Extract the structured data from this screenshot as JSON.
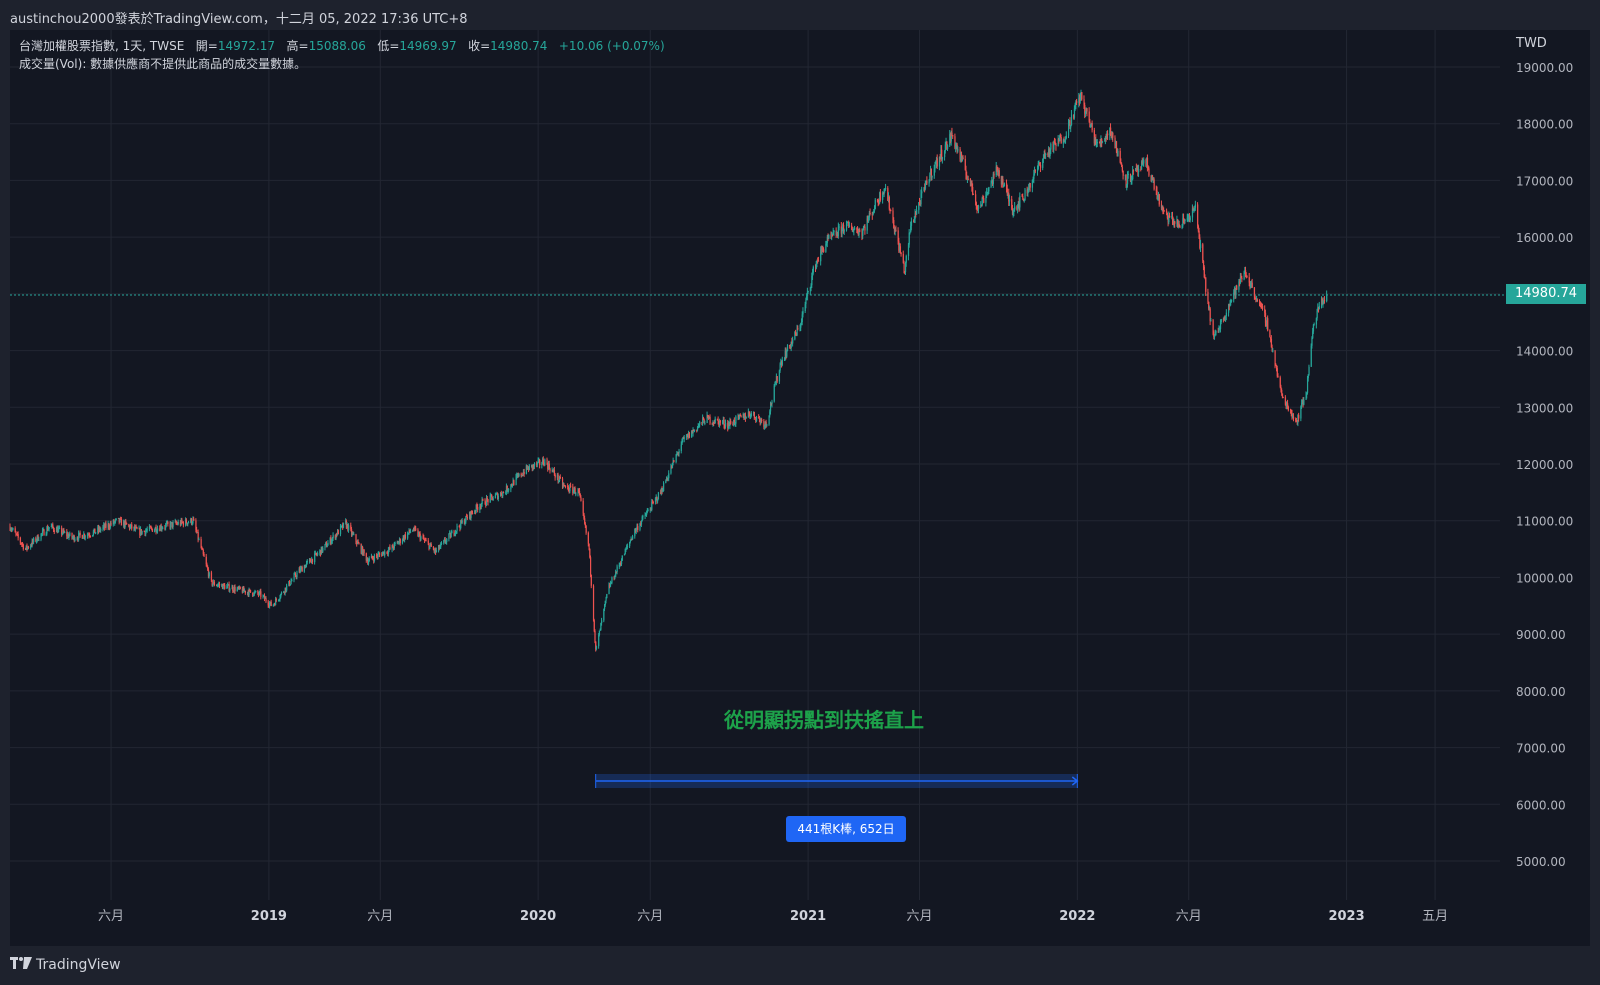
{
  "header": {
    "title": "austinchou2000發表於TradingView.com，十二月 05, 2022 17:36 UTC+8"
  },
  "legend": {
    "symbol": "台灣加權股票指數, 1天, TWSE",
    "open_label": "開=",
    "open": "14972.17",
    "high_label": "高=",
    "high": "15088.06",
    "low_label": "低=",
    "low": "14969.97",
    "close_label": "收=",
    "close": "14980.74",
    "change": "+10.06 (+0.07%)",
    "volume_note": "成交量(Vol): 數據供應商不提供此商品的成交量數據。"
  },
  "price_scale": {
    "currency": "TWD",
    "current_price": "14980.74"
  },
  "annotation": {
    "text": "從明顯拐點到扶搖直上",
    "range_badge": "441根K棒, 652日"
  },
  "branding": {
    "logo_text": "TradingView"
  },
  "colors": {
    "up": "#26a69a",
    "down": "#ef5350",
    "background": "#131722",
    "annotation_text": "#1da24a",
    "range_badge": "#1f66f5"
  },
  "chart_data": {
    "type": "candlestick",
    "title": "台灣加權股票指數, 1天, TWSE",
    "ylabel": "TWD",
    "ylim": [
      4000,
      19800
    ],
    "xlim": [
      "2018-01-15",
      "2023-07-28"
    ],
    "grid": true,
    "y_ticks": [
      "19000.00",
      "18000.00",
      "17000.00",
      "16000.00",
      "15000.00",
      "14000.00",
      "13000.00",
      "12000.00",
      "11000.00",
      "10000.00",
      "9000.00",
      "8000.00",
      "7000.00",
      "6000.00",
      "5000.00"
    ],
    "x_ticks": [
      {
        "date": "2018-06-01",
        "label": "六月"
      },
      {
        "date": "2019-01-01",
        "label": "2019"
      },
      {
        "date": "2019-06-01",
        "label": "六月"
      },
      {
        "date": "2020-01-01",
        "label": "2020"
      },
      {
        "date": "2020-06-01",
        "label": "六月"
      },
      {
        "date": "2021-01-01",
        "label": "2021"
      },
      {
        "date": "2021-06-01",
        "label": "六月"
      },
      {
        "date": "2022-01-01",
        "label": "2022"
      },
      {
        "date": "2022-06-01",
        "label": "六月"
      },
      {
        "date": "2023-01-01",
        "label": "2023"
      },
      {
        "date": "2023-05-01",
        "label": "五月"
      }
    ],
    "price_path": [
      [
        "2018-01-15",
        10900
      ],
      [
        "2018-02-05",
        10500
      ],
      [
        "2018-03-10",
        10900
      ],
      [
        "2018-04-10",
        10700
      ],
      [
        "2018-05-10",
        10800
      ],
      [
        "2018-06-10",
        11000
      ],
      [
        "2018-07-10",
        10800
      ],
      [
        "2018-08-10",
        10900
      ],
      [
        "2018-09-20",
        11000
      ],
      [
        "2018-10-15",
        9900
      ],
      [
        "2018-11-15",
        9800
      ],
      [
        "2018-12-20",
        9700
      ],
      [
        "2019-01-05",
        9500
      ],
      [
        "2019-02-10",
        10100
      ],
      [
        "2019-03-15",
        10500
      ],
      [
        "2019-04-15",
        10950
      ],
      [
        "2019-05-15",
        10300
      ],
      [
        "2019-06-15",
        10500
      ],
      [
        "2019-07-15",
        10850
      ],
      [
        "2019-08-15",
        10450
      ],
      [
        "2019-09-15",
        10900
      ],
      [
        "2019-10-15",
        11300
      ],
      [
        "2019-11-15",
        11500
      ],
      [
        "2019-12-15",
        11900
      ],
      [
        "2020-01-10",
        12050
      ],
      [
        "2020-02-05",
        11600
      ],
      [
        "2020-02-25",
        11500
      ],
      [
        "2020-03-10",
        10500
      ],
      [
        "2020-03-19",
        8700
      ],
      [
        "2020-04-05",
        9800
      ],
      [
        "2020-05-10",
        10800
      ],
      [
        "2020-06-15",
        11500
      ],
      [
        "2020-07-15",
        12400
      ],
      [
        "2020-08-15",
        12800
      ],
      [
        "2020-09-15",
        12700
      ],
      [
        "2020-10-15",
        12900
      ],
      [
        "2020-11-05",
        12700
      ],
      [
        "2020-11-25",
        13800
      ],
      [
        "2020-12-20",
        14400
      ],
      [
        "2021-01-10",
        15500
      ],
      [
        "2021-01-25",
        15900
      ],
      [
        "2021-02-20",
        16200
      ],
      [
        "2021-03-15",
        16100
      ],
      [
        "2021-04-15",
        16900
      ],
      [
        "2021-05-12",
        15400
      ],
      [
        "2021-05-20",
        16200
      ],
      [
        "2021-06-15",
        17100
      ],
      [
        "2021-07-15",
        17800
      ],
      [
        "2021-08-10",
        16900
      ],
      [
        "2021-08-20",
        16500
      ],
      [
        "2021-09-15",
        17200
      ],
      [
        "2021-10-05",
        16500
      ],
      [
        "2021-10-20",
        16700
      ],
      [
        "2021-11-15",
        17400
      ],
      [
        "2021-12-15",
        17800
      ],
      [
        "2022-01-05",
        18500
      ],
      [
        "2022-01-28",
        17600
      ],
      [
        "2022-02-15",
        17900
      ],
      [
        "2022-03-08",
        17000
      ],
      [
        "2022-04-05",
        17300
      ],
      [
        "2022-04-28",
        16400
      ],
      [
        "2022-05-20",
        16200
      ],
      [
        "2022-06-10",
        16500
      ],
      [
        "2022-06-25",
        15000
      ],
      [
        "2022-07-05",
        14200
      ],
      [
        "2022-07-25",
        14800
      ],
      [
        "2022-08-16",
        15400
      ],
      [
        "2022-09-15",
        14500
      ],
      [
        "2022-10-05",
        13200
      ],
      [
        "2022-10-25",
        12750
      ],
      [
        "2022-11-08",
        13300
      ],
      [
        "2022-11-15",
        14300
      ],
      [
        "2022-11-25",
        14800
      ],
      [
        "2022-12-05",
        14980.74
      ]
    ],
    "range_measure": {
      "start": "2020-03-19",
      "end": "2022-01-01",
      "bars": 441,
      "days": 652,
      "label": "441根K棒, 652日"
    },
    "current_price": 14980.74
  }
}
